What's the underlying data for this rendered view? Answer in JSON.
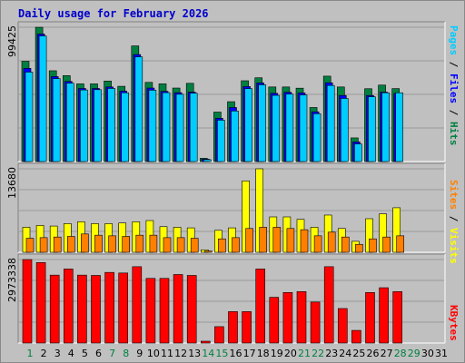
{
  "title": "Daily usage for February 2026",
  "legend": {
    "top": [
      {
        "text": "Pages",
        "color": "#00ccff"
      },
      {
        "text": " / ",
        "color": "#000000"
      },
      {
        "text": "Files",
        "color": "#0000ff"
      },
      {
        "text": " / ",
        "color": "#000000"
      },
      {
        "text": "Hits",
        "color": "#008040"
      }
    ],
    "middle": [
      {
        "text": "Sites",
        "color": "#ff8000"
      },
      {
        "text": " / ",
        "color": "#000000"
      },
      {
        "text": "Visits",
        "color": "#ffff00"
      }
    ],
    "bottom": [
      {
        "text": "KBytes",
        "color": "#ff0000"
      }
    ]
  },
  "chart_data": [
    {
      "type": "bar",
      "panel": "hits-files-pages",
      "ymax_label": "99425",
      "ylim": [
        0,
        99425
      ],
      "days": [
        1,
        2,
        3,
        4,
        5,
        6,
        7,
        8,
        9,
        10,
        11,
        12,
        13,
        14,
        15,
        16,
        17,
        18,
        19,
        20,
        21,
        22,
        23,
        24,
        25,
        26,
        27,
        28,
        29,
        30,
        31
      ],
      "series": [
        {
          "name": "Hits",
          "color": "#008040",
          "values": [
            74200,
            99400,
            67200,
            63600,
            57500,
            57500,
            59600,
            55700,
            85600,
            58600,
            57500,
            54400,
            57900,
            2400,
            36600,
            44300,
            59800,
            62000,
            55200,
            55200,
            54300,
            40000,
            63200,
            55200,
            17500,
            53900,
            56600,
            54000,
            0,
            0,
            0
          ]
        },
        {
          "name": "Files",
          "color": "#0000ff",
          "values": [
            69000,
            94400,
            62900,
            59300,
            54100,
            54100,
            55200,
            52100,
            79200,
            54400,
            52000,
            51000,
            51400,
            1800,
            32000,
            40000,
            55500,
            58200,
            50500,
            51300,
            50800,
            36800,
            58300,
            48900,
            14500,
            48900,
            51400,
            50400,
            0,
            0,
            0
          ]
        },
        {
          "name": "Pages",
          "color": "#00ccff",
          "values": [
            66200,
            92900,
            61400,
            58000,
            53000,
            53200,
            54100,
            50900,
            77500,
            52800,
            51000,
            49800,
            50600,
            1400,
            30600,
            37400,
            54000,
            56800,
            49000,
            49900,
            49300,
            35400,
            56300,
            46700,
            13000,
            47900,
            50900,
            50900,
            0,
            0,
            0
          ]
        }
      ]
    },
    {
      "type": "bar",
      "panel": "visits-sites",
      "ymax_label": "13680",
      "ylim": [
        0,
        13680
      ],
      "days": [
        1,
        2,
        3,
        4,
        5,
        6,
        7,
        8,
        9,
        10,
        11,
        12,
        13,
        14,
        15,
        16,
        17,
        18,
        19,
        20,
        21,
        22,
        23,
        24,
        25,
        26,
        27,
        28,
        29,
        30,
        31
      ],
      "series": [
        {
          "name": "Visits",
          "color": "#ffff00",
          "values": [
            4100,
            4400,
            4300,
            4700,
            5000,
            4700,
            4700,
            4800,
            5000,
            5200,
            4200,
            4100,
            4000,
            400,
            3600,
            4000,
            11700,
            13680,
            5800,
            5800,
            5400,
            4100,
            6100,
            3900,
            1800,
            5500,
            6300,
            7300,
            0,
            0,
            0
          ]
        },
        {
          "name": "Sites",
          "color": "#ff8000",
          "values": [
            2300,
            2400,
            2500,
            2600,
            3000,
            2800,
            2700,
            2600,
            2800,
            2800,
            2400,
            2400,
            2300,
            200,
            2200,
            2400,
            3900,
            4100,
            4100,
            3900,
            3700,
            2700,
            3300,
            2500,
            1300,
            2200,
            2500,
            2700,
            0,
            0,
            0
          ]
        }
      ]
    },
    {
      "type": "bar",
      "panel": "kbytes",
      "ymax_label": "2973338",
      "ylim": [
        0,
        2973338
      ],
      "days": [
        1,
        2,
        3,
        4,
        5,
        6,
        7,
        8,
        9,
        10,
        11,
        12,
        13,
        14,
        15,
        16,
        17,
        18,
        19,
        20,
        21,
        22,
        23,
        24,
        25,
        26,
        27,
        28,
        29,
        30,
        31
      ],
      "series": [
        {
          "name": "KBytes",
          "color": "#ff0000",
          "values": [
            2973338,
            2866000,
            2419000,
            2636000,
            2419000,
            2408000,
            2515000,
            2494000,
            2719000,
            2302000,
            2302000,
            2440000,
            2408000,
            65000,
            584000,
            1119000,
            1119000,
            2636000,
            1629000,
            1800000,
            1832000,
            1460000,
            2719000,
            1229000,
            450000,
            1800000,
            1970000,
            1832000,
            0,
            0,
            0
          ]
        }
      ]
    }
  ]
}
